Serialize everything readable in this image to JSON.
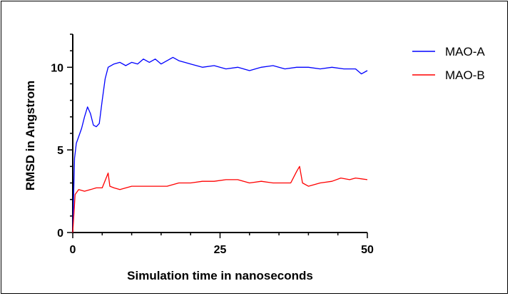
{
  "chart_data": {
    "type": "line",
    "xlabel": "Simulation time in nanoseconds",
    "ylabel": "RMSD in Angstrom",
    "xlim": [
      0,
      50
    ],
    "ylim": [
      0,
      12
    ],
    "x_ticks": [
      "0",
      "25",
      "50"
    ],
    "y_ticks": [
      "0",
      "5",
      "10"
    ],
    "legend_position": "top-right",
    "grid": false,
    "series": [
      {
        "name": "MAO-A",
        "color": "#0000ff",
        "x": [
          0,
          0.3,
          0.6,
          1,
          1.5,
          2,
          2.5,
          3,
          3.5,
          4,
          4.5,
          5,
          5.5,
          6,
          7,
          8,
          9,
          10,
          11,
          12,
          13,
          14,
          15,
          16,
          17,
          18,
          19,
          20,
          22,
          24,
          26,
          28,
          30,
          32,
          34,
          36,
          38,
          40,
          42,
          44,
          46,
          48,
          49,
          50
        ],
        "y": [
          0,
          4.5,
          5.4,
          5.8,
          6.3,
          7.0,
          7.6,
          7.2,
          6.5,
          6.4,
          6.6,
          8.0,
          9.3,
          10.0,
          10.2,
          10.3,
          10.1,
          10.3,
          10.2,
          10.5,
          10.3,
          10.5,
          10.2,
          10.4,
          10.6,
          10.4,
          10.3,
          10.2,
          10.0,
          10.1,
          9.9,
          10.0,
          9.8,
          10.0,
          10.1,
          9.9,
          10.0,
          10.0,
          9.9,
          10.0,
          9.9,
          9.9,
          9.6,
          9.8
        ]
      },
      {
        "name": "MAO-B",
        "color": "#ff0000",
        "x": [
          0,
          0.4,
          1,
          2,
          3,
          4,
          5,
          6,
          6.3,
          7,
          8,
          10,
          12,
          14,
          16,
          18,
          20,
          22,
          24,
          26,
          28,
          30,
          32,
          34,
          36,
          37,
          38,
          38.5,
          39,
          40,
          42,
          44,
          45.5,
          47,
          48,
          50
        ],
        "y": [
          0,
          2.3,
          2.6,
          2.5,
          2.6,
          2.7,
          2.7,
          3.6,
          2.8,
          2.7,
          2.6,
          2.8,
          2.8,
          2.8,
          2.8,
          3.0,
          3.0,
          3.1,
          3.1,
          3.2,
          3.2,
          3.0,
          3.1,
          3.0,
          3.0,
          3.0,
          3.7,
          4.0,
          3.0,
          2.8,
          3.0,
          3.1,
          3.3,
          3.2,
          3.3,
          3.2
        ]
      }
    ]
  }
}
